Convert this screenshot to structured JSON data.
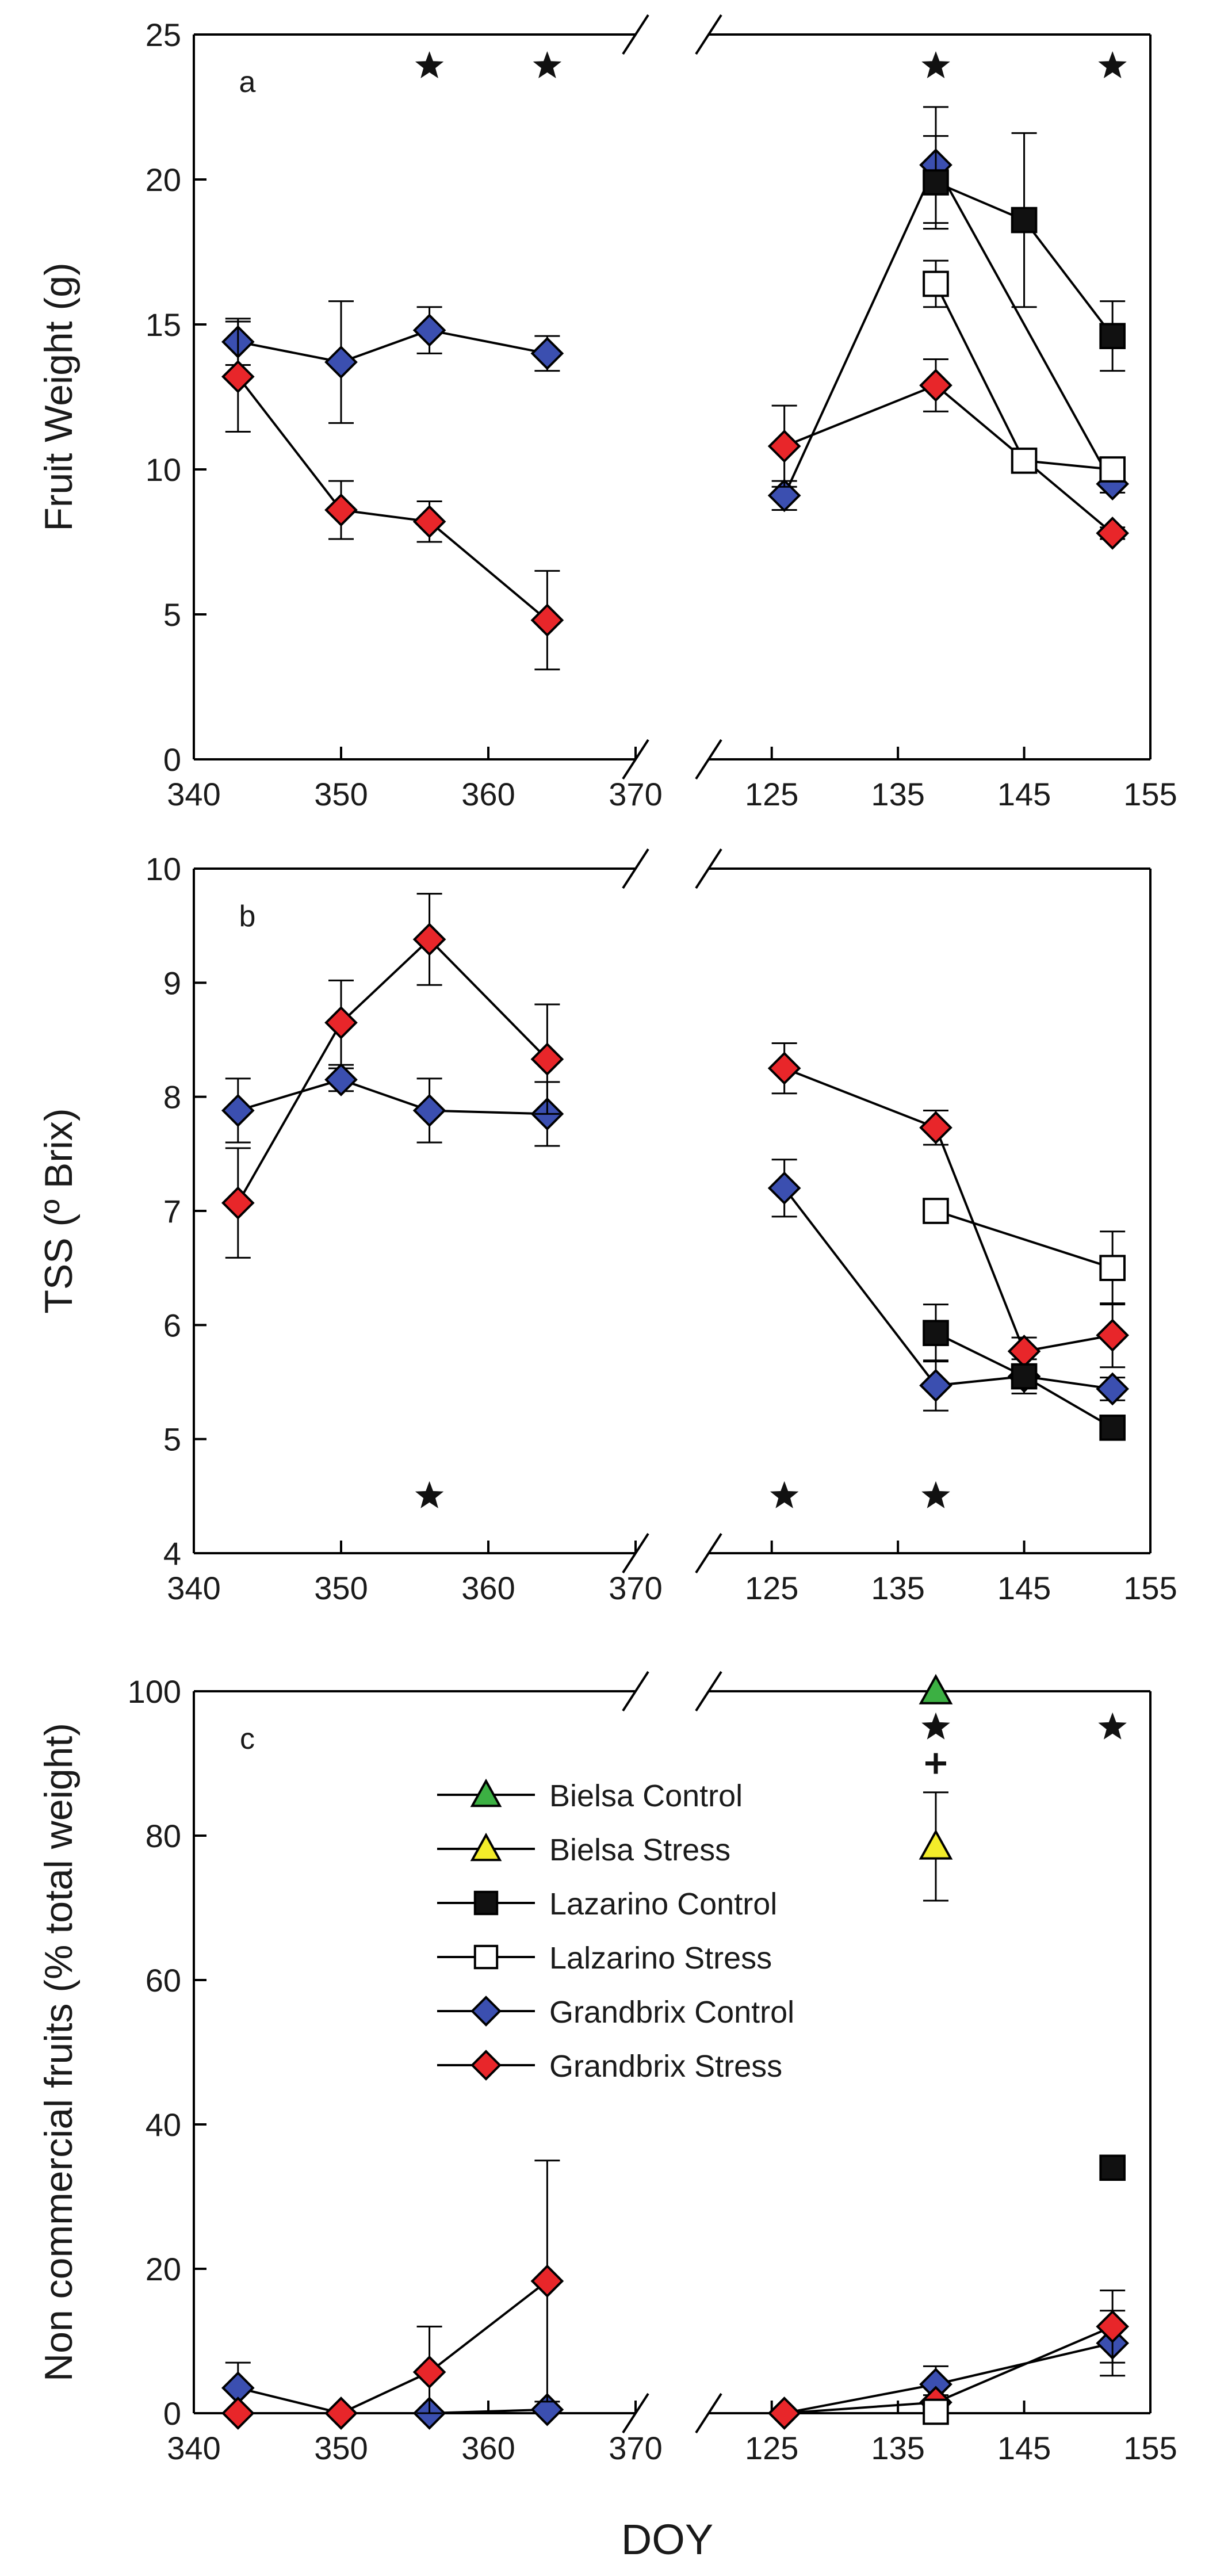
{
  "figure": {
    "xlabel": "DOY",
    "legend": [
      {
        "name": "Bielsa Control",
        "marker": "triangle",
        "fill": "#3cb043"
      },
      {
        "name": "Bielsa Stress",
        "marker": "triangle",
        "fill": "#f3ec2a"
      },
      {
        "name": "Lazarino Control",
        "marker": "square",
        "fill": "#111111"
      },
      {
        "name": "Lalzarino Stress",
        "marker": "square",
        "fill": "#ffffff"
      },
      {
        "name": "Grandbrix Control",
        "marker": "diamond",
        "fill": "#3b4fb0"
      },
      {
        "name": "Grandbrix Stress",
        "marker": "diamond",
        "fill": "#e8262a"
      }
    ],
    "legend_placement": "upper-middle of panel c"
  },
  "chart_data": [
    {
      "type": "line",
      "panel_label": "a",
      "ylabel": "Fruit Weight (g)",
      "ylim": [
        0,
        25
      ],
      "yticks": [
        0,
        5,
        10,
        15,
        20,
        25
      ],
      "x_segments": [
        {
          "range": [
            340,
            370
          ],
          "ticks": [
            340,
            350,
            360,
            370
          ],
          "tick_labels": [
            "340",
            "350",
            "360",
            "370"
          ]
        },
        {
          "range": [
            120,
            155
          ],
          "ticks": [
            125,
            135,
            145,
            155
          ],
          "tick_labels": [
            "125",
            "135",
            "145",
            "155"
          ]
        }
      ],
      "broken_axis": true,
      "significance_stars": [
        {
          "segment": 0,
          "x": 356
        },
        {
          "segment": 0,
          "x": 364
        },
        {
          "segment": 1,
          "x": 138
        },
        {
          "segment": 1,
          "x": 152
        }
      ],
      "plus_marks": [],
      "series": [
        {
          "name": "Grandbrix Control",
          "segments": [
            [
              {
                "x": 343,
                "y": 14.4,
                "err": 0.8
              },
              {
                "x": 350,
                "y": 13.7,
                "err": 2.1
              },
              {
                "x": 356,
                "y": 14.8,
                "err": 0.8
              },
              {
                "x": 364,
                "y": 14.0,
                "err": 0.6
              }
            ],
            [
              {
                "x": 126,
                "y": 9.1,
                "err": 0.5
              },
              {
                "x": 138,
                "y": 20.5,
                "err": 2.0
              },
              {
                "x": 152,
                "y": 9.5,
                "err": 0.3
              }
            ]
          ]
        },
        {
          "name": "Grandbrix Stress",
          "segments": [
            [
              {
                "x": 343,
                "y": 13.2,
                "err": 1.9
              },
              {
                "x": 350,
                "y": 8.6,
                "err": 1.0
              },
              {
                "x": 356,
                "y": 8.2,
                "err": 0.7
              },
              {
                "x": 364,
                "y": 4.8,
                "err": 1.7
              }
            ],
            [
              {
                "x": 126,
                "y": 10.8,
                "err": 1.4
              },
              {
                "x": 138,
                "y": 12.9,
                "err": 0.9
              },
              {
                "x": 152,
                "y": 7.8,
                "err": 0.2
              }
            ]
          ]
        },
        {
          "name": "Lazarino Control",
          "segments": [
            [],
            [
              {
                "x": 138,
                "y": 19.9,
                "err": 1.6
              },
              {
                "x": 145,
                "y": 18.6,
                "err": 3.0
              },
              {
                "x": 152,
                "y": 14.6,
                "err": 1.2
              }
            ]
          ]
        },
        {
          "name": "Lalzarino Stress",
          "segments": [
            [],
            [
              {
                "x": 138,
                "y": 16.4,
                "err": 0.8
              },
              {
                "x": 145,
                "y": 10.3,
                "err": 0.2
              },
              {
                "x": 152,
                "y": 10.0,
                "err": 0.2
              }
            ]
          ]
        }
      ]
    },
    {
      "type": "line",
      "panel_label": "b",
      "ylabel": "TSS (º Brix)",
      "ylim": [
        4,
        10
      ],
      "yticks": [
        4,
        5,
        6,
        7,
        8,
        9,
        10
      ],
      "x_segments": [
        {
          "range": [
            340,
            370
          ],
          "ticks": [
            340,
            350,
            360,
            370
          ],
          "tick_labels": [
            "340",
            "350",
            "360",
            "370"
          ]
        },
        {
          "range": [
            120,
            155
          ],
          "ticks": [
            125,
            135,
            145,
            155
          ],
          "tick_labels": [
            "125",
            "135",
            "145",
            "155"
          ]
        }
      ],
      "broken_axis": true,
      "significance_stars": [
        {
          "segment": 0,
          "x": 356
        },
        {
          "segment": 1,
          "x": 126
        },
        {
          "segment": 1,
          "x": 138
        }
      ],
      "plus_marks": [],
      "series": [
        {
          "name": "Grandbrix Control",
          "segments": [
            [
              {
                "x": 343,
                "y": 7.88,
                "err": 0.28
              },
              {
                "x": 350,
                "y": 8.15,
                "err": 0.1
              },
              {
                "x": 356,
                "y": 7.88,
                "err": 0.28
              },
              {
                "x": 364,
                "y": 7.85,
                "err": 0.28
              }
            ],
            [
              {
                "x": 126,
                "y": 7.2,
                "err": 0.25
              },
              {
                "x": 138,
                "y": 5.47,
                "err": 0.22
              },
              {
                "x": 145,
                "y": 5.55,
                "err": 0.15
              },
              {
                "x": 152,
                "y": 5.44,
                "err": 0.1
              }
            ]
          ]
        },
        {
          "name": "Grandbrix Stress",
          "segments": [
            [
              {
                "x": 343,
                "y": 7.07,
                "err": 0.48
              },
              {
                "x": 350,
                "y": 8.65,
                "err": 0.37
              },
              {
                "x": 356,
                "y": 9.38,
                "err": 0.4
              },
              {
                "x": 364,
                "y": 8.33,
                "err": 0.48
              }
            ],
            [
              {
                "x": 126,
                "y": 8.25,
                "err": 0.22
              },
              {
                "x": 138,
                "y": 7.73,
                "err": 0.15
              },
              {
                "x": 145,
                "y": 5.77,
                "err": 0.12
              },
              {
                "x": 152,
                "y": 5.91,
                "err": 0.28
              }
            ]
          ]
        },
        {
          "name": "Lazarino Control",
          "segments": [
            [],
            [
              {
                "x": 138,
                "y": 5.93,
                "err": 0.25
              },
              {
                "x": 145,
                "y": 5.55,
                "err": 0.1
              },
              {
                "x": 152,
                "y": 5.1,
                "err": 0.08
              }
            ]
          ]
        },
        {
          "name": "Lalzarino Stress",
          "segments": [
            [],
            [
              {
                "x": 138,
                "y": 7.0,
                "err": 0.0
              },
              {
                "x": 152,
                "y": 6.5,
                "err": 0.32
              }
            ]
          ]
        }
      ]
    },
    {
      "type": "line",
      "panel_label": "c",
      "ylabel": "Non commercial fruits (% total weight)",
      "ylim": [
        0,
        100
      ],
      "yticks": [
        0,
        20,
        40,
        60,
        80,
        100
      ],
      "x_segments": [
        {
          "range": [
            340,
            370
          ],
          "ticks": [
            340,
            350,
            360,
            370
          ],
          "tick_labels": [
            "340",
            "350",
            "360",
            "370"
          ]
        },
        {
          "range": [
            120,
            155
          ],
          "ticks": [
            125,
            135,
            145,
            155
          ],
          "tick_labels": [
            "125",
            "135",
            "145",
            "155"
          ]
        }
      ],
      "broken_axis": true,
      "significance_stars": [
        {
          "segment": 1,
          "x": 138
        },
        {
          "segment": 1,
          "x": 152
        }
      ],
      "plus_marks": [
        {
          "segment": 1,
          "x": 138
        }
      ],
      "series": [
        {
          "name": "Grandbrix Control",
          "segments": [
            [
              {
                "x": 343,
                "y": 3.5,
                "err": 3.5
              },
              {
                "x": 350,
                "y": 0,
                "err": 0
              },
              {
                "x": 356,
                "y": 0,
                "err": 0
              },
              {
                "x": 364,
                "y": 0.5,
                "err": 0
              }
            ],
            [
              {
                "x": 126,
                "y": 0,
                "err": 0
              },
              {
                "x": 138,
                "y": 4.0,
                "err": 2.5
              },
              {
                "x": 152,
                "y": 9.7,
                "err": 4.5
              }
            ]
          ]
        },
        {
          "name": "Grandbrix Stress",
          "segments": [
            [
              {
                "x": 343,
                "y": 0,
                "err": 0
              },
              {
                "x": 350,
                "y": 0,
                "err": 0
              },
              {
                "x": 356,
                "y": 5.7,
                "err": 6.3
              },
              {
                "x": 364,
                "y": 18.3,
                "err": 16.7
              }
            ],
            [
              {
                "x": 126,
                "y": 0,
                "err": 0
              },
              {
                "x": 138,
                "y": 1.5,
                "err": 1.0
              },
              {
                "x": 152,
                "y": 12.0,
                "err": 5.0
              }
            ]
          ]
        },
        {
          "name": "Lalzarino Stress",
          "segments": [
            [],
            [
              {
                "x": 138,
                "y": 0.2,
                "err": 0
              }
            ]
          ]
        },
        {
          "name": "Lazarino Control",
          "segments": [
            [],
            [
              {
                "x": 152,
                "y": 34.0,
                "err": 0
              }
            ]
          ]
        },
        {
          "name": "Bielsa Stress",
          "segments": [
            [],
            [
              {
                "x": 138,
                "y": 78.5,
                "err": 7.5
              }
            ]
          ]
        },
        {
          "name": "Bielsa Control",
          "segments": [
            [],
            [
              {
                "x": 138,
                "y": 100,
                "err": 0
              }
            ]
          ]
        }
      ]
    }
  ]
}
